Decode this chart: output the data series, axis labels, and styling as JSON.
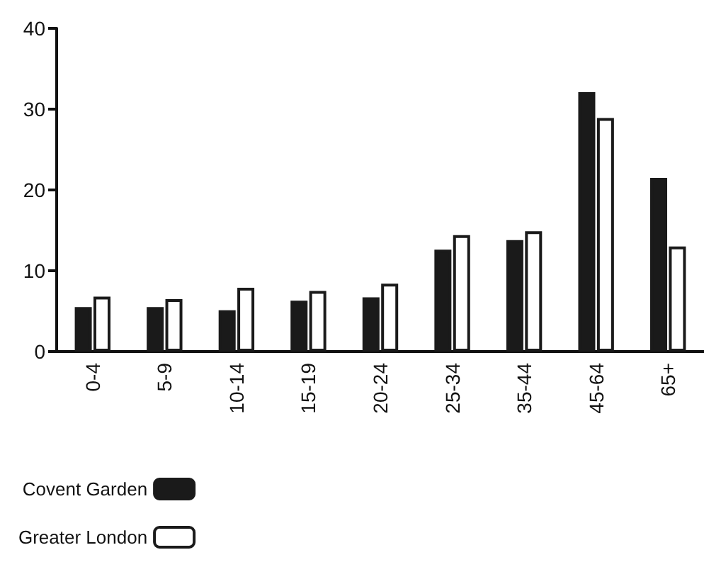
{
  "chart_data": {
    "type": "bar",
    "categories": [
      "0-4",
      "5-9",
      "10-14",
      "15-19",
      "20-24",
      "25-34",
      "35-44",
      "45-64",
      "65+"
    ],
    "series": [
      {
        "name": "Covent Garden",
        "color": "#1a1a1a",
        "values": [
          5.5,
          5.5,
          5.1,
          6.3,
          6.7,
          12.6,
          13.8,
          32.1,
          21.5
        ]
      },
      {
        "name": "Greater London",
        "color": "#ffffff",
        "values": [
          6.8,
          6.5,
          7.9,
          7.5,
          8.4,
          14.4,
          14.9,
          28.9,
          13.0
        ]
      }
    ],
    "ylim": [
      0,
      40
    ],
    "yticks": [
      0,
      10,
      20,
      30,
      40
    ],
    "grid": false,
    "legend": "bottom left"
  }
}
